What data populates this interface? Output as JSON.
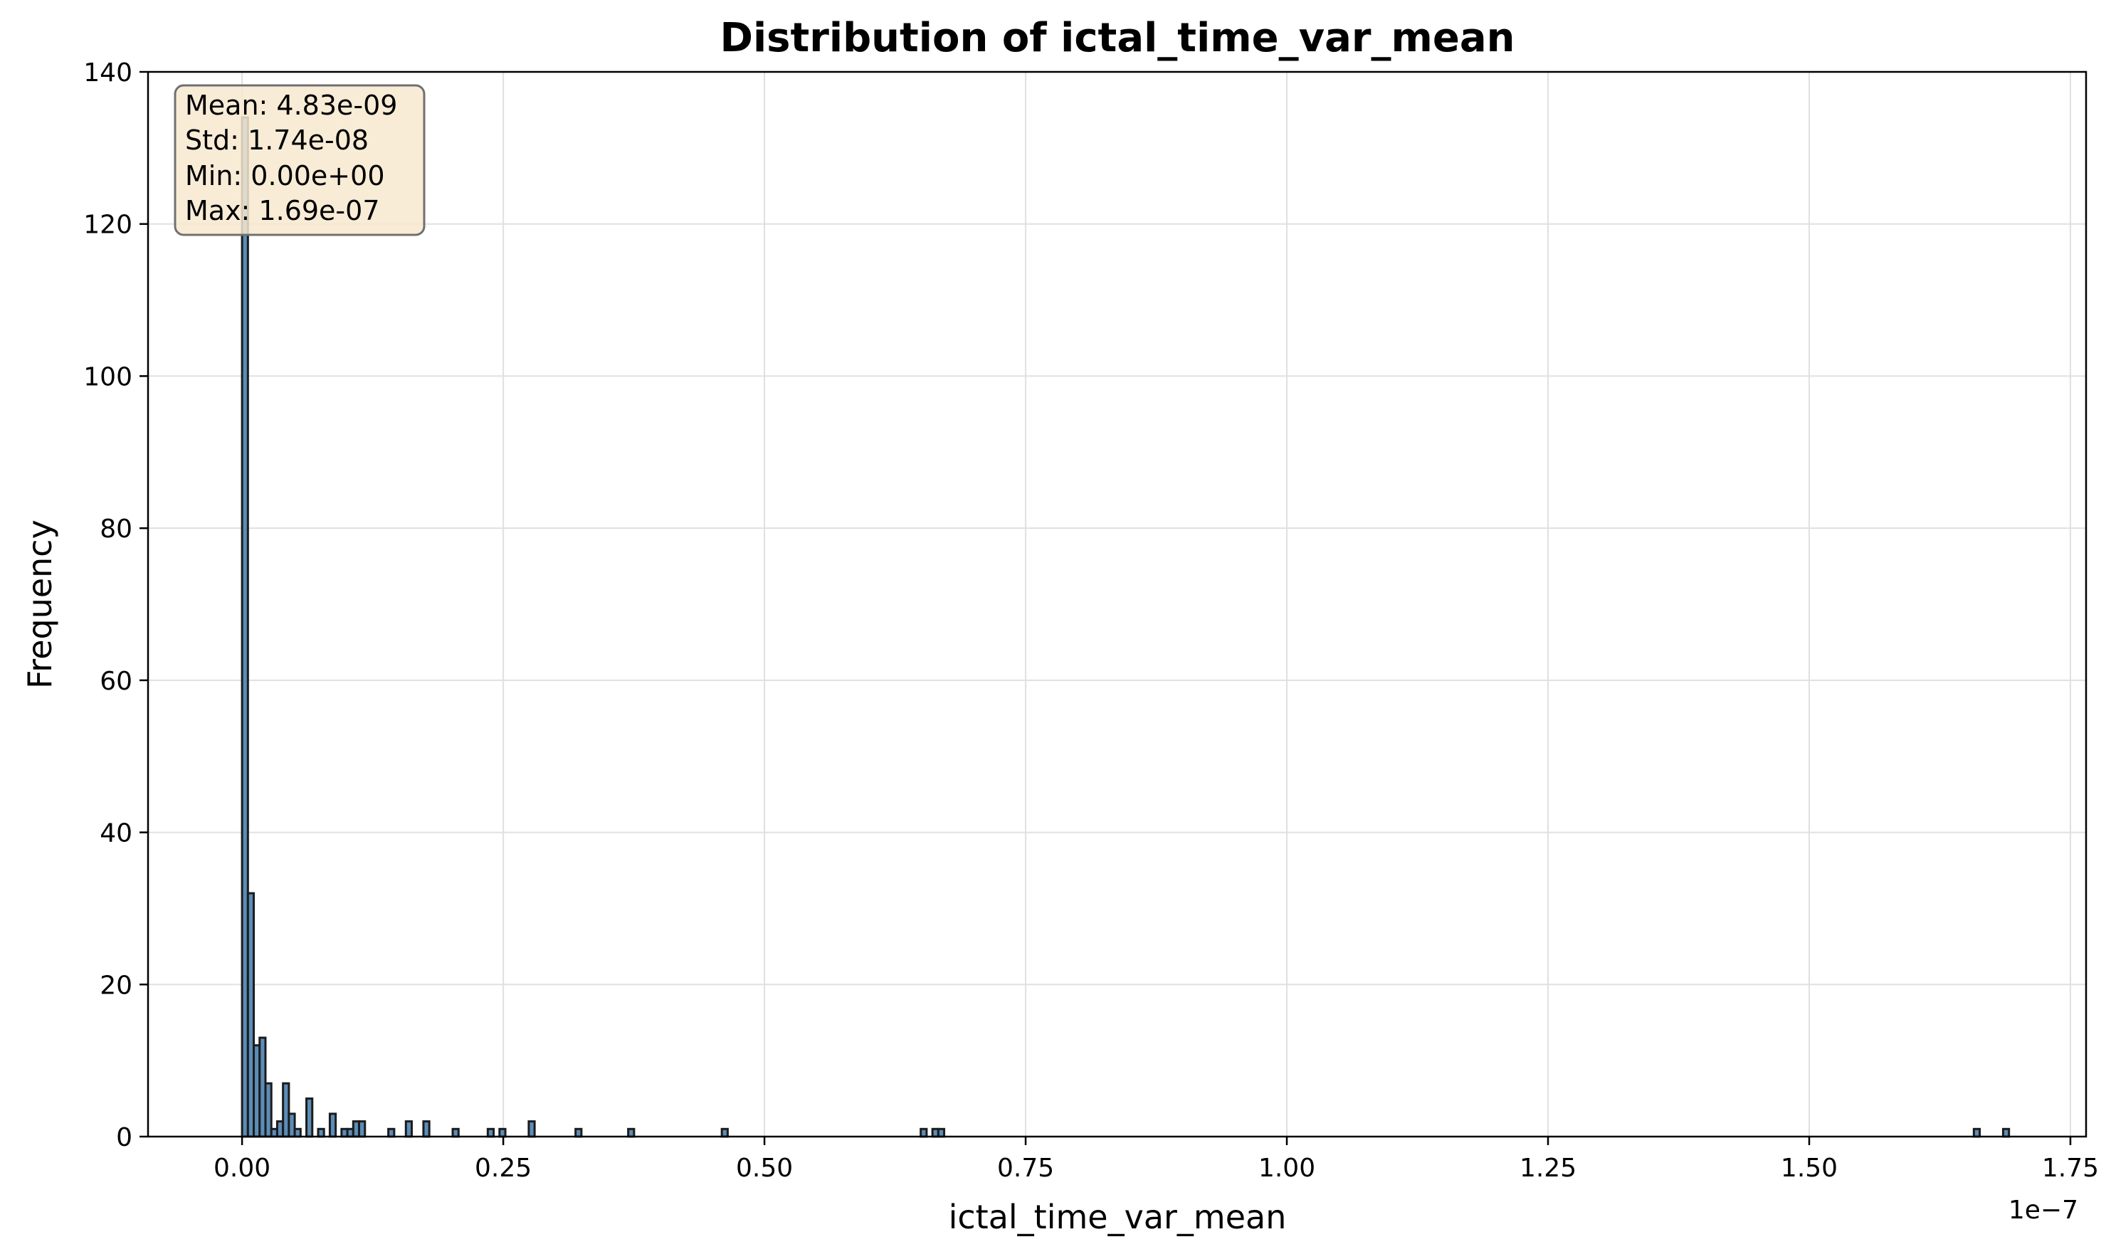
{
  "chart_data": {
    "type": "bar",
    "title": "Distribution of ictal_time_var_mean",
    "xlabel": "ictal_time_var_mean",
    "ylabel": "Frequency",
    "x_offset_label": "1e−7",
    "x_scale": 1e-07,
    "xlim": [
      -0.09,
      1.765
    ],
    "ylim": [
      0,
      140
    ],
    "x_ticks": [
      0.0,
      0.25,
      0.5,
      0.75,
      1.0,
      1.25,
      1.5,
      1.75
    ],
    "x_tick_labels": [
      "0.00",
      "0.25",
      "0.50",
      "0.75",
      "1.00",
      "1.25",
      "1.50",
      "1.75"
    ],
    "y_ticks": [
      0,
      20,
      40,
      60,
      80,
      100,
      120,
      140
    ],
    "y_tick_labels": [
      "0",
      "20",
      "40",
      "60",
      "80",
      "100",
      "120",
      "140"
    ],
    "grid": true,
    "bin_width": 0.0056,
    "bins": [
      {
        "x": 0.0,
        "count": 134
      },
      {
        "x": 0.0056,
        "count": 32
      },
      {
        "x": 0.0112,
        "count": 12
      },
      {
        "x": 0.0168,
        "count": 13
      },
      {
        "x": 0.0224,
        "count": 7
      },
      {
        "x": 0.028,
        "count": 1
      },
      {
        "x": 0.0336,
        "count": 2
      },
      {
        "x": 0.0392,
        "count": 7
      },
      {
        "x": 0.0448,
        "count": 3
      },
      {
        "x": 0.0504,
        "count": 1
      },
      {
        "x": 0.0616,
        "count": 5
      },
      {
        "x": 0.0728,
        "count": 1
      },
      {
        "x": 0.084,
        "count": 3
      },
      {
        "x": 0.0952,
        "count": 1
      },
      {
        "x": 0.1008,
        "count": 1
      },
      {
        "x": 0.1064,
        "count": 2
      },
      {
        "x": 0.112,
        "count": 2
      },
      {
        "x": 0.14,
        "count": 1
      },
      {
        "x": 0.1568,
        "count": 2
      },
      {
        "x": 0.1736,
        "count": 2
      },
      {
        "x": 0.2016,
        "count": 1
      },
      {
        "x": 0.2352,
        "count": 1
      },
      {
        "x": 0.2464,
        "count": 1
      },
      {
        "x": 0.2744,
        "count": 2
      },
      {
        "x": 0.3192,
        "count": 1
      },
      {
        "x": 0.3696,
        "count": 1
      },
      {
        "x": 0.4592,
        "count": 1
      },
      {
        "x": 0.6496,
        "count": 1
      },
      {
        "x": 0.6608,
        "count": 1
      },
      {
        "x": 0.6664,
        "count": 1
      },
      {
        "x": 1.6576,
        "count": 1
      },
      {
        "x": 1.6856,
        "count": 1
      }
    ],
    "stats": {
      "mean": "Mean: 4.83e-09",
      "std": "Std: 1.74e-08",
      "min": "Min: 0.00e+00",
      "max": "Max: 1.69e-07"
    },
    "colors": {
      "bar_fill": "#5b8db8",
      "bar_edge": "#1c1c1c",
      "grid": "#e0e0e0",
      "stats_box_fill": "#f7e9d0",
      "stats_box_edge": "#707070"
    }
  }
}
